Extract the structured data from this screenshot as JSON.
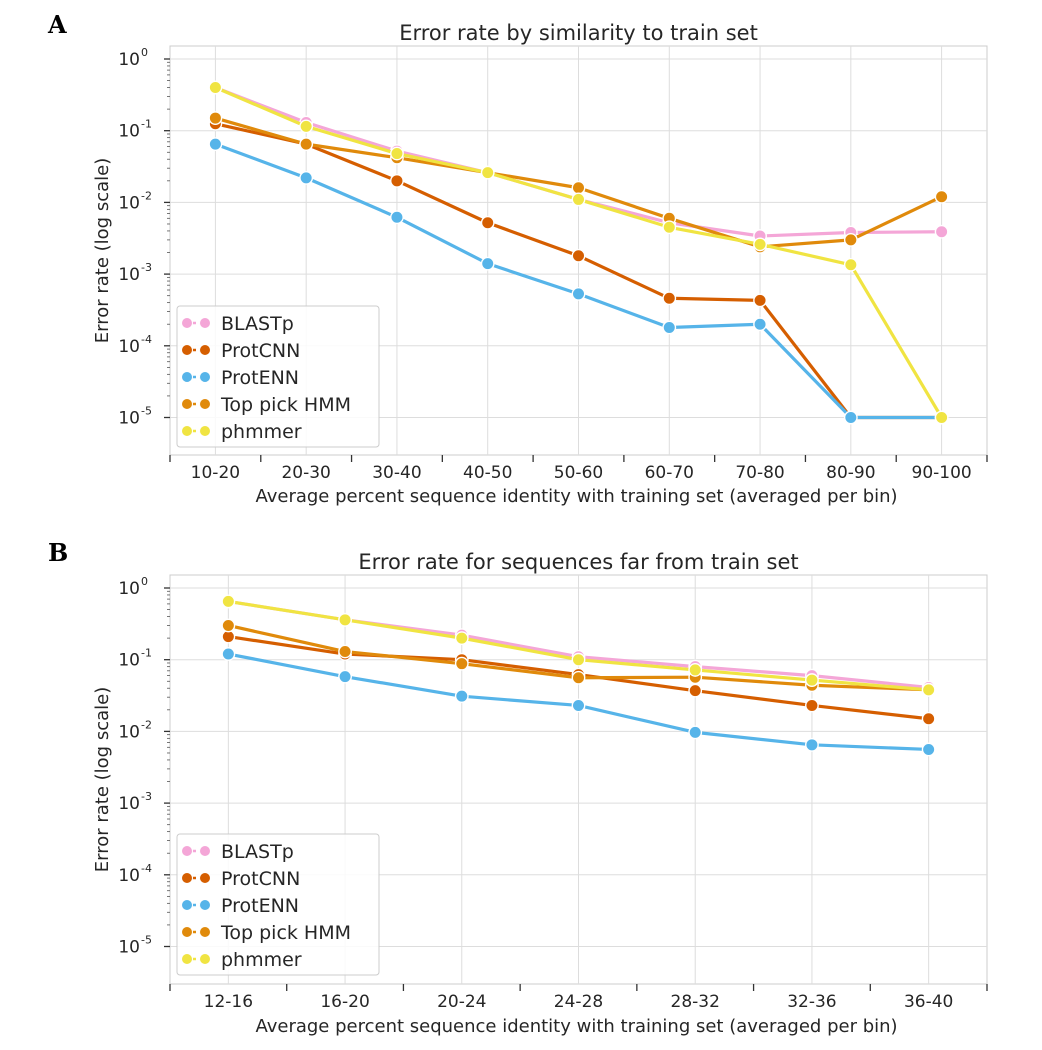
{
  "chart_data": [
    {
      "panel": "A",
      "type": "line",
      "title": "Error rate by similarity to train set",
      "xlabel": "Average percent sequence identity with training set (averaged per bin)",
      "ylabel": "Error rate (log scale)",
      "yscale": "log",
      "ylim": [
        5e-06,
        1
      ],
      "grid": true,
      "legend_position": "bottom-left",
      "categories": [
        "10-20",
        "20-30",
        "30-40",
        "40-50",
        "50-60",
        "60-70",
        "70-80",
        "80-90",
        "90-100"
      ],
      "y_ticks": [
        {
          "base": "10",
          "exp": "0"
        },
        {
          "base": "10",
          "exp": "-1"
        },
        {
          "base": "10",
          "exp": "-2"
        },
        {
          "base": "10",
          "exp": "-3"
        },
        {
          "base": "10",
          "exp": "-4"
        },
        {
          "base": "10",
          "exp": "-5"
        }
      ],
      "series": [
        {
          "name": "BLASTp",
          "color": "#f4a6d7",
          "values": [
            0.4,
            0.13,
            0.052,
            0.026,
            0.011,
            0.0052,
            0.0034,
            0.0038,
            0.0039
          ]
        },
        {
          "name": "ProtCNN",
          "color": "#d55e00",
          "values": [
            0.125,
            0.065,
            0.02,
            0.0052,
            0.0018,
            0.00046,
            0.00043,
            1e-05,
            1e-05
          ]
        },
        {
          "name": "ProtENN",
          "color": "#56b4e9",
          "values": [
            0.065,
            0.022,
            0.0062,
            0.0014,
            0.00053,
            0.00018,
            0.0002,
            1e-05,
            1e-05
          ]
        },
        {
          "name": "Top pick HMM",
          "color": "#e08a0b",
          "values": [
            0.15,
            0.065,
            0.042,
            0.026,
            0.016,
            0.006,
            0.0024,
            0.003,
            0.012
          ]
        },
        {
          "name": "phmmer",
          "color": "#f0e442",
          "values": [
            0.4,
            0.115,
            0.048,
            0.026,
            0.011,
            0.0045,
            0.0026,
            0.00135,
            1e-05
          ]
        }
      ]
    },
    {
      "panel": "B",
      "type": "line",
      "title": "Error rate for sequences far from train set",
      "xlabel": "Average percent sequence identity with training set (averaged per bin)",
      "ylabel": "Error rate (log scale)",
      "yscale": "log",
      "ylim": [
        5e-06,
        1
      ],
      "grid": true,
      "legend_position": "bottom-left",
      "categories": [
        "12-16",
        "16-20",
        "20-24",
        "24-28",
        "28-32",
        "32-36",
        "36-40"
      ],
      "y_ticks": [
        {
          "base": "10",
          "exp": "0"
        },
        {
          "base": "10",
          "exp": "-1"
        },
        {
          "base": "10",
          "exp": "-2"
        },
        {
          "base": "10",
          "exp": "-3"
        },
        {
          "base": "10",
          "exp": "-4"
        },
        {
          "base": "10",
          "exp": "-5"
        }
      ],
      "series": [
        {
          "name": "BLASTp",
          "color": "#f4a6d7",
          "values": [
            0.65,
            0.36,
            0.22,
            0.11,
            0.08,
            0.06,
            0.041
          ]
        },
        {
          "name": "ProtCNN",
          "color": "#d55e00",
          "values": [
            0.21,
            0.12,
            0.1,
            0.062,
            0.037,
            0.023,
            0.015
          ]
        },
        {
          "name": "ProtENN",
          "color": "#56b4e9",
          "values": [
            0.12,
            0.058,
            0.031,
            0.023,
            0.0097,
            0.0065,
            0.0056
          ]
        },
        {
          "name": "Top pick HMM",
          "color": "#e08a0b",
          "values": [
            0.3,
            0.13,
            0.088,
            0.056,
            0.057,
            0.044,
            0.038
          ]
        },
        {
          "name": "phmmer",
          "color": "#f0e442",
          "values": [
            0.65,
            0.36,
            0.2,
            0.1,
            0.072,
            0.052,
            0.038
          ]
        }
      ]
    }
  ],
  "panel_letters": {
    "a": "A",
    "b": "B"
  }
}
